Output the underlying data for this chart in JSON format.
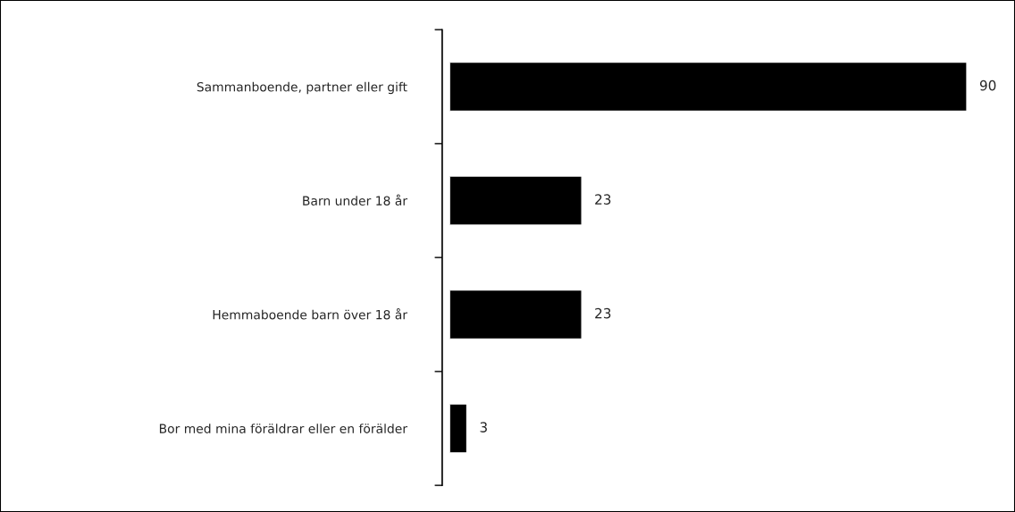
{
  "chart_data": {
    "type": "bar",
    "orientation": "horizontal",
    "categories": [
      "Sammanboende, partner eller gift",
      "Barn under 18 år",
      "Hemmaboende barn över 18 år",
      "Bor med mina föräldrar eller en förälder"
    ],
    "values": [
      90,
      23,
      23,
      3
    ],
    "color": "#000000",
    "data_labels": true,
    "tick_labels": "y",
    "grid": false,
    "legend": false
  }
}
